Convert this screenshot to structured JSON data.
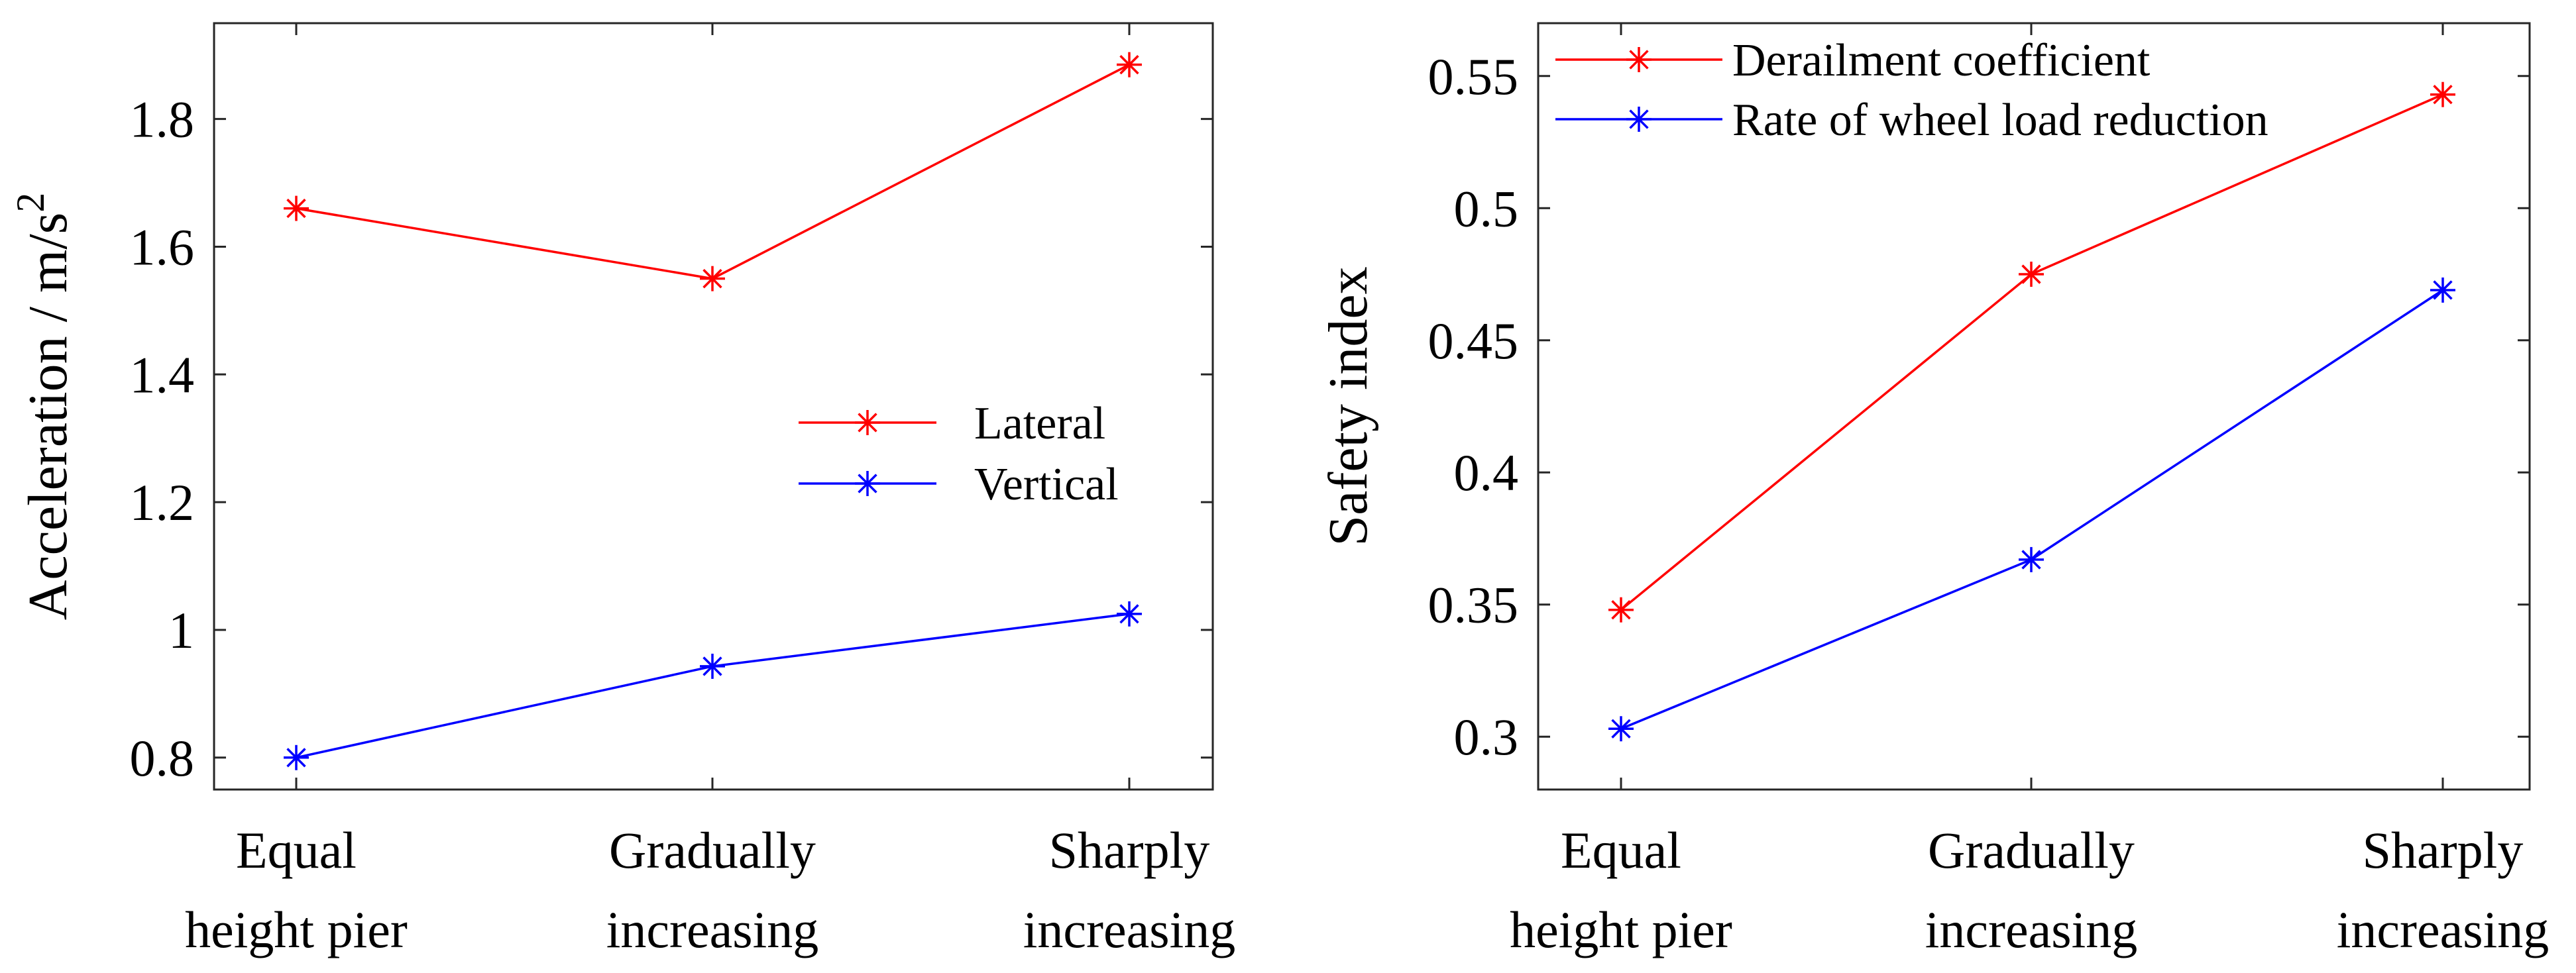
{
  "chart_data": [
    {
      "type": "line",
      "categories": [
        [
          "Equal",
          "height pier"
        ],
        [
          "Gradually",
          "increasing"
        ],
        [
          "Sharply",
          "increasing"
        ]
      ],
      "ylabel": "Acceleration / m/s",
      "ylabel_sup": "2",
      "ylim": [
        0.75,
        1.95
      ],
      "yticks": [
        0.8,
        1.0,
        1.2,
        1.4,
        1.6,
        1.8
      ],
      "ytick_labels": [
        "0.8",
        "1",
        "1.2",
        "1.4",
        "1.6",
        "1.8"
      ],
      "legend_position": "center-right",
      "series": [
        {
          "name": "Lateral",
          "color": "#ff0000",
          "marker": "asterisk",
          "values": [
            1.66,
            1.55,
            1.885
          ]
        },
        {
          "name": "Vertical",
          "color": "#0000ff",
          "marker": "asterisk",
          "values": [
            0.8,
            0.943,
            1.025
          ]
        }
      ]
    },
    {
      "type": "line",
      "categories": [
        [
          "Equal",
          "height pier"
        ],
        [
          "Gradually",
          "increasing"
        ],
        [
          "Sharply",
          "increasing"
        ]
      ],
      "ylabel": "Safety index",
      "ylim": [
        0.28,
        0.57
      ],
      "yticks": [
        0.3,
        0.35,
        0.4,
        0.45,
        0.5,
        0.55
      ],
      "ytick_labels": [
        "0.3",
        "0.35",
        "0.4",
        "0.45",
        "0.5",
        "0.55"
      ],
      "legend_position": "top-left",
      "series": [
        {
          "name": "Derailment coefficient",
          "color": "#ff0000",
          "marker": "asterisk",
          "values": [
            0.348,
            0.475,
            0.543
          ]
        },
        {
          "name": "Rate of wheel load reduction",
          "color": "#0000ff",
          "marker": "asterisk",
          "values": [
            0.303,
            0.367,
            0.469
          ]
        }
      ]
    }
  ]
}
